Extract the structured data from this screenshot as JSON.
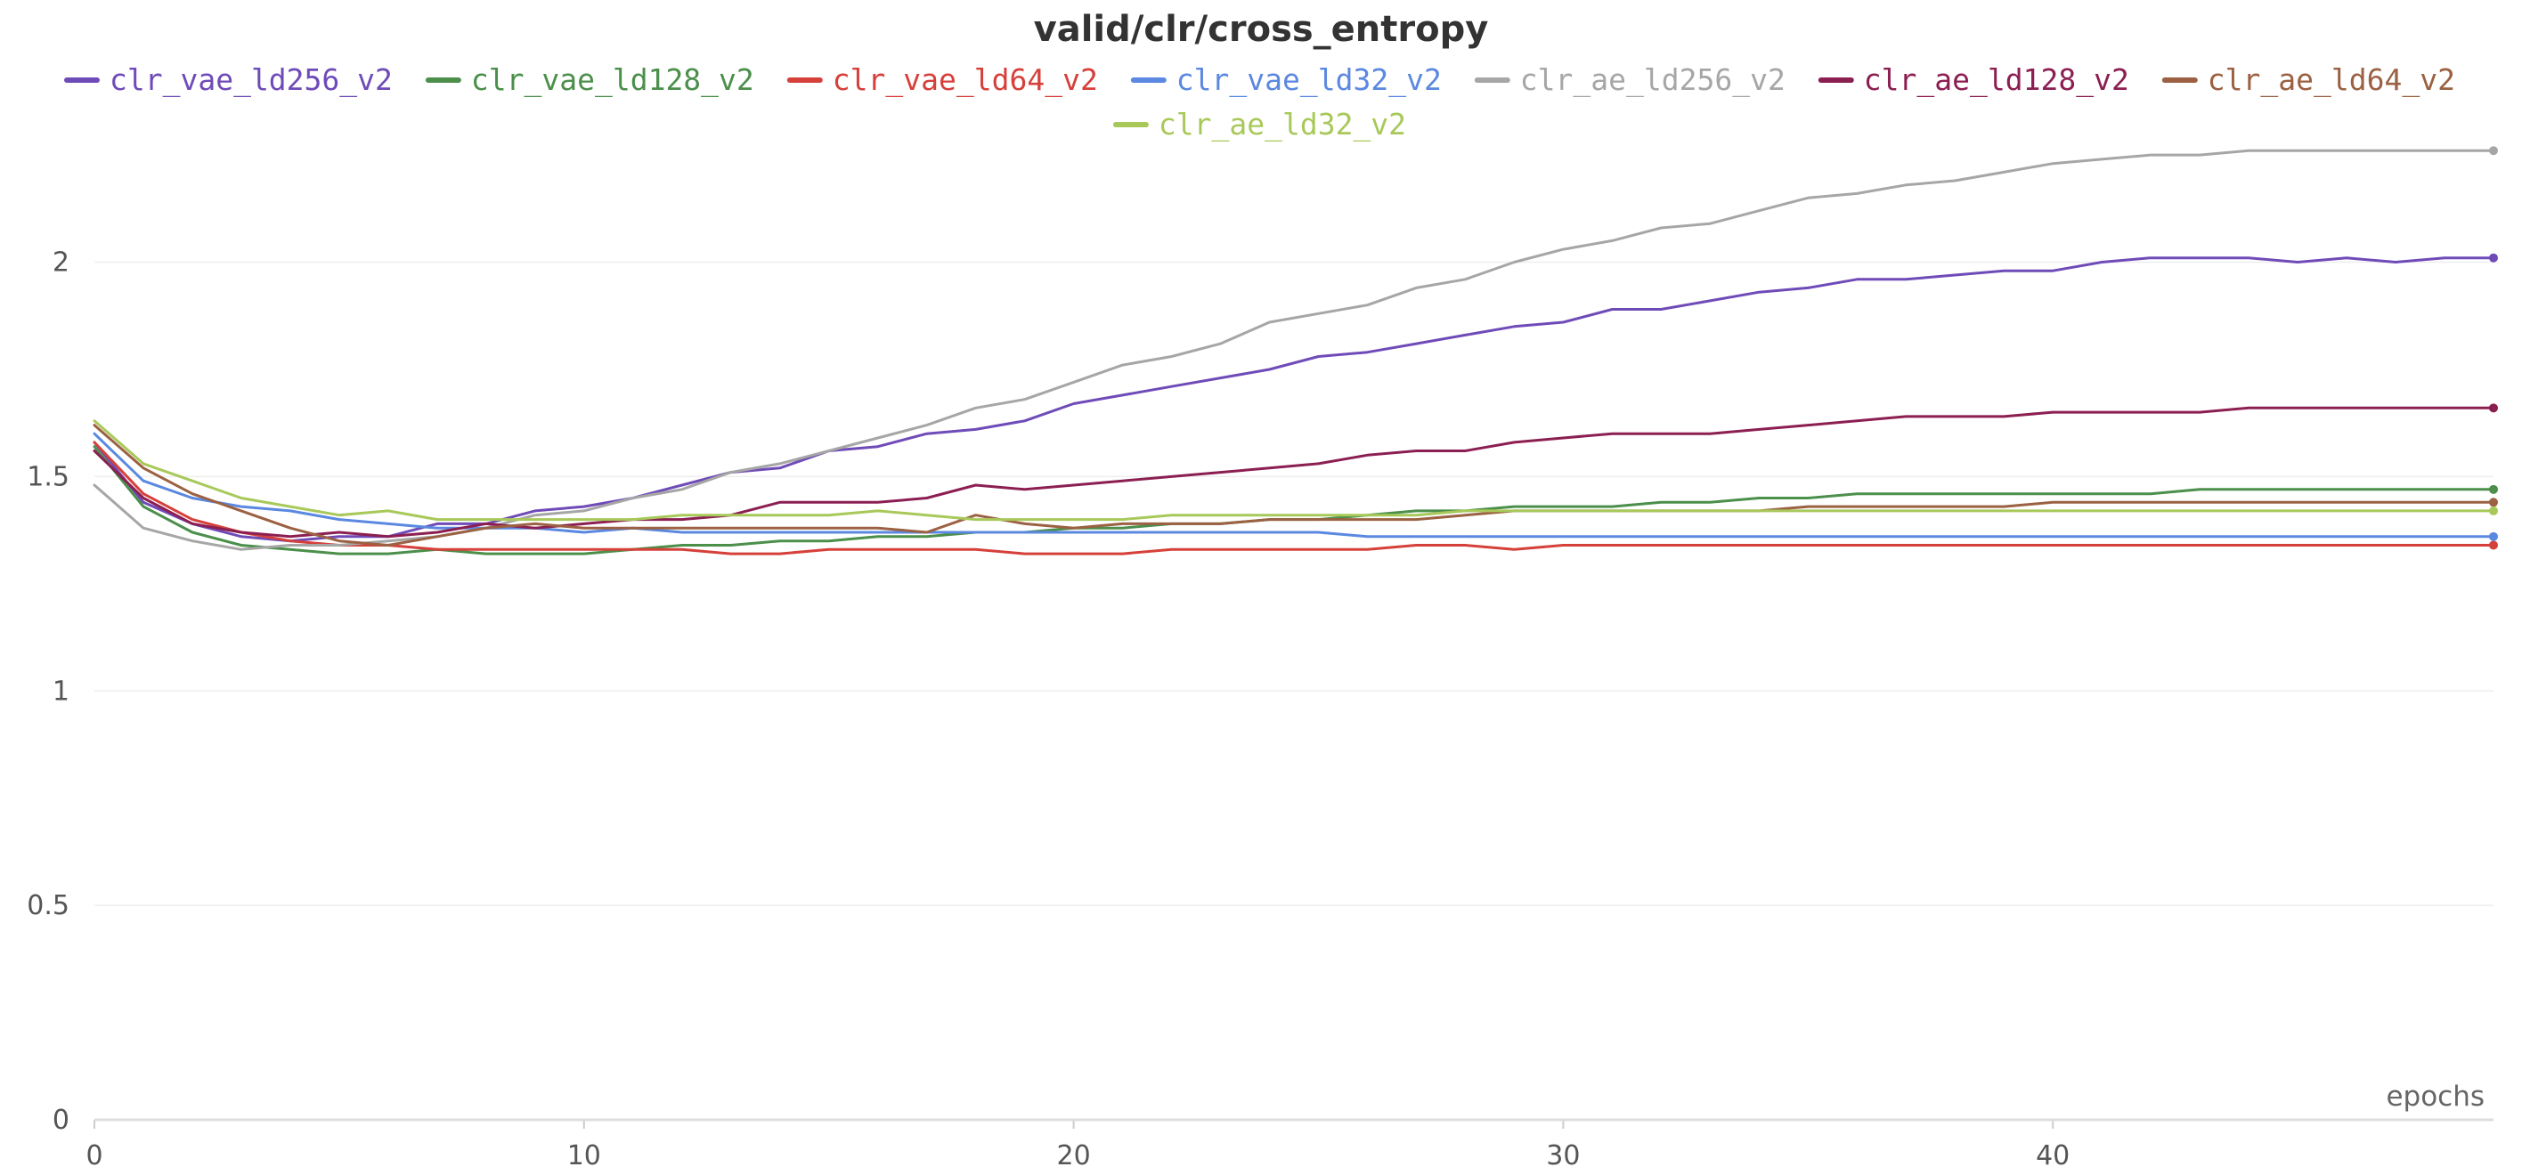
{
  "chart_data": {
    "type": "line",
    "title": "valid/clr/cross_entropy",
    "xlabel": "epochs",
    "ylabel": "",
    "xlim": [
      0,
      49
    ],
    "ylim": [
      0,
      2.3
    ],
    "x_ticks": [
      0,
      10,
      20,
      30,
      40
    ],
    "y_ticks": [
      0,
      0.5,
      1,
      1.5,
      2
    ],
    "x_tick_labels": [
      "0",
      "10",
      "20",
      "30",
      "40"
    ],
    "y_tick_labels": [
      "0",
      "0.5",
      "1",
      "1.5",
      "2"
    ],
    "grid": true,
    "legend_position": "top",
    "x": [
      0,
      1,
      2,
      3,
      4,
      5,
      6,
      7,
      8,
      9,
      10,
      11,
      12,
      13,
      14,
      15,
      16,
      17,
      18,
      19,
      20,
      21,
      22,
      23,
      24,
      25,
      26,
      27,
      28,
      29,
      30,
      31,
      32,
      33,
      34,
      35,
      36,
      37,
      38,
      39,
      40,
      41,
      42,
      43,
      44,
      45,
      46,
      47,
      48,
      49
    ],
    "series": [
      {
        "name": "clr_vae_ld256_v2",
        "color": "#6f4bb8",
        "values": [
          1.58,
          1.44,
          1.39,
          1.36,
          1.35,
          1.36,
          1.36,
          1.39,
          1.39,
          1.42,
          1.43,
          1.45,
          1.48,
          1.51,
          1.52,
          1.56,
          1.57,
          1.6,
          1.61,
          1.63,
          1.67,
          1.69,
          1.71,
          1.73,
          1.75,
          1.78,
          1.79,
          1.81,
          1.83,
          1.85,
          1.86,
          1.89,
          1.89,
          1.91,
          1.93,
          1.94,
          1.96,
          1.96,
          1.97,
          1.98,
          1.98,
          2.0,
          2.01,
          2.01,
          2.01,
          2.0,
          2.01,
          2.0,
          2.01,
          2.01
        ]
      },
      {
        "name": "clr_vae_ld128_v2",
        "color": "#4b8f4b",
        "values": [
          1.57,
          1.43,
          1.37,
          1.34,
          1.33,
          1.32,
          1.32,
          1.33,
          1.32,
          1.32,
          1.32,
          1.33,
          1.34,
          1.34,
          1.35,
          1.35,
          1.36,
          1.36,
          1.37,
          1.37,
          1.38,
          1.38,
          1.39,
          1.39,
          1.4,
          1.4,
          1.41,
          1.42,
          1.42,
          1.43,
          1.43,
          1.43,
          1.44,
          1.44,
          1.45,
          1.45,
          1.46,
          1.46,
          1.46,
          1.46,
          1.46,
          1.46,
          1.46,
          1.47,
          1.47,
          1.47,
          1.47,
          1.47,
          1.47,
          1.47
        ]
      },
      {
        "name": "clr_vae_ld64_v2",
        "color": "#d6403a",
        "values": [
          1.58,
          1.46,
          1.4,
          1.37,
          1.35,
          1.34,
          1.34,
          1.33,
          1.33,
          1.33,
          1.33,
          1.33,
          1.33,
          1.32,
          1.32,
          1.33,
          1.33,
          1.33,
          1.33,
          1.32,
          1.32,
          1.32,
          1.33,
          1.33,
          1.33,
          1.33,
          1.33,
          1.34,
          1.34,
          1.33,
          1.34,
          1.34,
          1.34,
          1.34,
          1.34,
          1.34,
          1.34,
          1.34,
          1.34,
          1.34,
          1.34,
          1.34,
          1.34,
          1.34,
          1.34,
          1.34,
          1.34,
          1.34,
          1.34,
          1.34
        ]
      },
      {
        "name": "clr_vae_ld32_v2",
        "color": "#5b88e0",
        "values": [
          1.6,
          1.49,
          1.45,
          1.43,
          1.42,
          1.4,
          1.39,
          1.38,
          1.38,
          1.38,
          1.37,
          1.38,
          1.37,
          1.37,
          1.37,
          1.37,
          1.37,
          1.37,
          1.37,
          1.37,
          1.37,
          1.37,
          1.37,
          1.37,
          1.37,
          1.37,
          1.36,
          1.36,
          1.36,
          1.36,
          1.36,
          1.36,
          1.36,
          1.36,
          1.36,
          1.36,
          1.36,
          1.36,
          1.36,
          1.36,
          1.36,
          1.36,
          1.36,
          1.36,
          1.36,
          1.36,
          1.36,
          1.36,
          1.36,
          1.36
        ]
      },
      {
        "name": "clr_ae_ld256_v2",
        "color": "#a6a6a6",
        "values": [
          1.48,
          1.38,
          1.35,
          1.33,
          1.34,
          1.34,
          1.35,
          1.36,
          1.38,
          1.41,
          1.42,
          1.45,
          1.47,
          1.51,
          1.53,
          1.56,
          1.59,
          1.62,
          1.66,
          1.68,
          1.72,
          1.76,
          1.78,
          1.81,
          1.86,
          1.88,
          1.9,
          1.94,
          1.96,
          2.0,
          2.03,
          2.05,
          2.08,
          2.09,
          2.12,
          2.15,
          2.16,
          2.18,
          2.19,
          2.21,
          2.23,
          2.24,
          2.25,
          2.25,
          2.26,
          2.26,
          2.26,
          2.26,
          2.26,
          2.26
        ]
      },
      {
        "name": "clr_ae_ld128_v2",
        "color": "#8c1f52",
        "values": [
          1.56,
          1.45,
          1.39,
          1.37,
          1.36,
          1.37,
          1.36,
          1.37,
          1.39,
          1.38,
          1.39,
          1.4,
          1.4,
          1.41,
          1.44,
          1.44,
          1.44,
          1.45,
          1.48,
          1.47,
          1.48,
          1.49,
          1.5,
          1.51,
          1.52,
          1.53,
          1.55,
          1.56,
          1.56,
          1.58,
          1.59,
          1.6,
          1.6,
          1.6,
          1.61,
          1.62,
          1.63,
          1.64,
          1.64,
          1.64,
          1.65,
          1.65,
          1.65,
          1.65,
          1.66,
          1.66,
          1.66,
          1.66,
          1.66,
          1.66
        ]
      },
      {
        "name": "clr_ae_ld64_v2",
        "color": "#9b6142",
        "values": [
          1.62,
          1.52,
          1.46,
          1.42,
          1.38,
          1.35,
          1.34,
          1.36,
          1.38,
          1.39,
          1.38,
          1.38,
          1.38,
          1.38,
          1.38,
          1.38,
          1.38,
          1.37,
          1.41,
          1.39,
          1.38,
          1.39,
          1.39,
          1.39,
          1.4,
          1.4,
          1.4,
          1.4,
          1.41,
          1.42,
          1.42,
          1.42,
          1.42,
          1.42,
          1.42,
          1.43,
          1.43,
          1.43,
          1.43,
          1.43,
          1.44,
          1.44,
          1.44,
          1.44,
          1.44,
          1.44,
          1.44,
          1.44,
          1.44,
          1.44
        ]
      },
      {
        "name": "clr_ae_ld32_v2",
        "color": "#a8c95a",
        "values": [
          1.63,
          1.53,
          1.49,
          1.45,
          1.43,
          1.41,
          1.42,
          1.4,
          1.4,
          1.4,
          1.4,
          1.4,
          1.41,
          1.41,
          1.41,
          1.41,
          1.42,
          1.41,
          1.4,
          1.4,
          1.4,
          1.4,
          1.41,
          1.41,
          1.41,
          1.41,
          1.41,
          1.41,
          1.42,
          1.42,
          1.42,
          1.42,
          1.42,
          1.42,
          1.42,
          1.42,
          1.42,
          1.42,
          1.42,
          1.42,
          1.42,
          1.42,
          1.42,
          1.42,
          1.42,
          1.42,
          1.42,
          1.42,
          1.42,
          1.42
        ]
      }
    ]
  }
}
